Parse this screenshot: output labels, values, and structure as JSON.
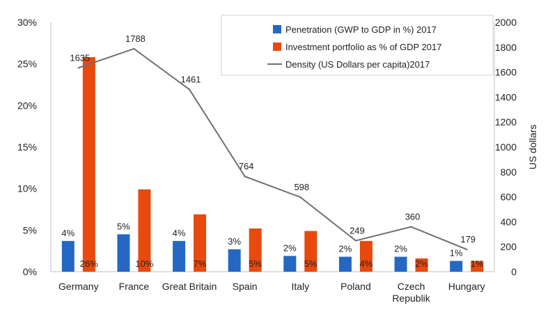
{
  "chart_data": {
    "type": "bar",
    "categories": [
      "Germany",
      "France",
      "Great Britain",
      "Spain",
      "Italy",
      "Poland",
      "Czech Republik",
      "Hungary"
    ],
    "category_lines": [
      [
        "Germany"
      ],
      [
        "France"
      ],
      [
        "Great Britain"
      ],
      [
        "Spain"
      ],
      [
        "Italy"
      ],
      [
        "Poland"
      ],
      [
        "Czech",
        "Republik"
      ],
      [
        "Hungary"
      ]
    ],
    "series": [
      {
        "name": "Penetration (GWP to GDP in %) 2017",
        "kind": "bar",
        "axis": "left",
        "color": "#2468c4",
        "values": [
          3.7,
          4.5,
          3.7,
          2.7,
          1.9,
          1.8,
          1.8,
          1.3
        ],
        "labels": [
          "4%",
          "5%",
          "4%",
          "3%",
          "2%",
          "2%",
          "2%",
          "1%"
        ]
      },
      {
        "name": "Investment portfolio as % of GDP 2017",
        "kind": "bar",
        "axis": "left",
        "color": "#e8490f",
        "values": [
          25.8,
          9.9,
          6.9,
          5.2,
          4.9,
          3.7,
          1.6,
          1.3
        ],
        "labels": [
          "26%",
          "10%",
          "7%",
          "5%",
          "5%",
          "4%",
          "2%",
          "1%"
        ]
      },
      {
        "name": "Density (US Dollars per capita)2017",
        "kind": "line",
        "axis": "right",
        "color": "#6e6e6e",
        "values": [
          1635,
          1788,
          1461,
          764,
          598,
          249,
          360,
          179
        ],
        "labels": [
          "1635",
          "1788",
          "1461",
          "764",
          "598",
          "249",
          "360",
          "179"
        ]
      }
    ],
    "y_left": {
      "min": 0,
      "max": 30,
      "step": 5,
      "tick_labels": [
        "0%",
        "5%",
        "10%",
        "15%",
        "20%",
        "25%",
        "30%"
      ]
    },
    "y_right": {
      "min": 0,
      "max": 2000,
      "step": 200,
      "tick_labels": [
        "0",
        "200",
        "400",
        "600",
        "800",
        "1000",
        "1200",
        "1400",
        "1600",
        "1800",
        "2000"
      ],
      "label": "US dollars"
    },
    "grid": false,
    "legend_position": "top-right"
  }
}
